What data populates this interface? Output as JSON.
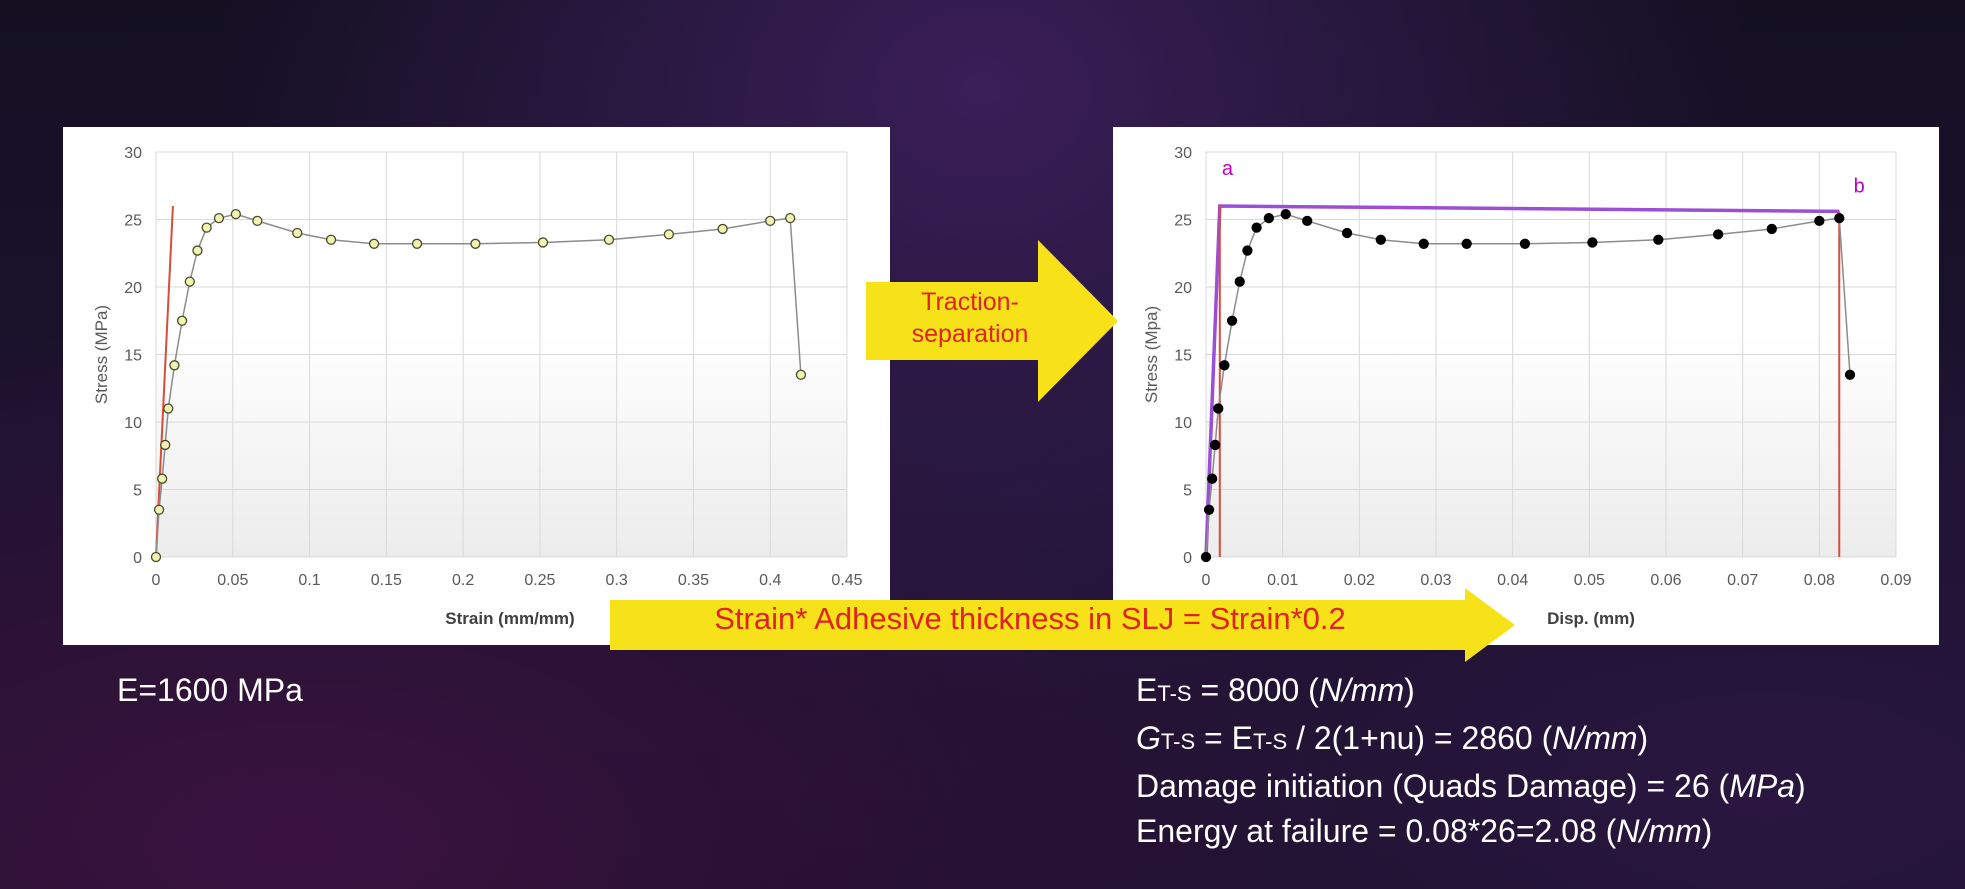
{
  "chart_data": [
    {
      "type": "scatter",
      "xlabel": "Strain (mm/mm)",
      "ylabel": "Stress (MPa)",
      "xlim": [
        0,
        0.45
      ],
      "ylim": [
        0,
        30
      ],
      "x_ticks": [
        "0",
        "0.05",
        "0.1",
        "0.15",
        "0.2",
        "0.25",
        "0.3",
        "0.35",
        "0.4",
        "0.45"
      ],
      "y_ticks": [
        "0",
        "5",
        "10",
        "15",
        "20",
        "25",
        "30"
      ],
      "grid": true,
      "series": [
        {
          "marker_color": "#f1f3b5",
          "x": [
            0,
            0.002,
            0.004,
            0.006,
            0.008,
            0.012,
            0.017,
            0.022,
            0.027,
            0.033,
            0.041,
            0.052,
            0.066,
            0.092,
            0.114,
            0.142,
            0.17,
            0.208,
            0.252,
            0.295,
            0.334,
            0.369,
            0.4,
            0.413,
            0.42
          ],
          "y": [
            0,
            3.5,
            5.8,
            8.3,
            11,
            14.2,
            17.5,
            20.4,
            22.7,
            24.4,
            25.1,
            25.4,
            24.9,
            24,
            23.5,
            23.2,
            23.2,
            23.2,
            23.3,
            23.5,
            23.9,
            24.3,
            24.9,
            25.1,
            13.5
          ]
        }
      ],
      "reference_lines": [
        {
          "color": "#d84c3a",
          "x": [
            0,
            0.011
          ],
          "y": [
            0,
            26
          ]
        }
      ]
    },
    {
      "type": "scatter",
      "xlabel": "Disp. (mm)",
      "ylabel": "Stress (Mpa)",
      "xlim": [
        0,
        0.09
      ],
      "ylim": [
        0,
        30
      ],
      "x_ticks": [
        "0",
        "0.01",
        "0.02",
        "0.03",
        "0.04",
        "0.05",
        "0.06",
        "0.07",
        "0.08",
        "0.09"
      ],
      "y_ticks": [
        "0",
        "5",
        "10",
        "15",
        "20",
        "25",
        "30"
      ],
      "grid": true,
      "series": [
        {
          "marker_color": "#000000",
          "x": [
            0,
            0.0004,
            0.0008,
            0.0012,
            0.0016,
            0.0024,
            0.0034,
            0.0044,
            0.0054,
            0.0066,
            0.0082,
            0.0104,
            0.0132,
            0.0184,
            0.0228,
            0.0284,
            0.034,
            0.0416,
            0.0504,
            0.059,
            0.0668,
            0.0738,
            0.08,
            0.0826,
            0.084
          ],
          "y": [
            0,
            3.5,
            5.8,
            8.3,
            11,
            14.2,
            17.5,
            20.4,
            22.7,
            24.4,
            25.1,
            25.4,
            24.9,
            24,
            23.5,
            23.2,
            23.2,
            23.2,
            23.3,
            23.5,
            23.9,
            24.3,
            24.9,
            25.1,
            13.5
          ]
        }
      ],
      "reference_lines": [
        {
          "color": "#9b4fd6",
          "x": [
            0,
            0.0018,
            0.0826
          ],
          "y": [
            0,
            26,
            25.6
          ]
        },
        {
          "color": "#d84c3a",
          "x": [
            0.0018,
            0.0018
          ],
          "y": [
            0,
            26
          ]
        },
        {
          "color": "#d84c3a",
          "x": [
            0.0826,
            0.0826
          ],
          "y": [
            0,
            25.6
          ]
        }
      ],
      "annotations": [
        {
          "text": "a",
          "x": 0.0028,
          "y": 28.3,
          "color": "#c000c0"
        },
        {
          "text": "b",
          "x": 0.0852,
          "y": 27,
          "color": "#c000c0"
        }
      ]
    }
  ],
  "arrows": {
    "traction_label_line1": "Traction-",
    "traction_label_line2": "separation",
    "strain_label": "Strain* Adhesive thickness in SLJ = Strain*0.2",
    "color": "#f7e21a",
    "text_color": "#e0241b"
  },
  "notes": {
    "left": "E=1600 MPa",
    "e_sym": "E",
    "ts_sub": "T-S",
    "g_sym": "G",
    "row1_value": " = 8000 (",
    "row1_unit": "N/mm",
    "row1_end": ")",
    "row2_mid": " = E",
    "row2_rest": " / 2(1+nu) = 2860 (",
    "row2_unit": "N/mm",
    "row2_end": ")",
    "row3_text": "Damage initiation (Quads Damage) = 26 (",
    "row3_unit": "MPa",
    "row3_end": ")",
    "row4_text": "Energy at failure = 0.08*26=2.08 (",
    "row4_unit": "N/mm",
    "row4_end": ")"
  }
}
